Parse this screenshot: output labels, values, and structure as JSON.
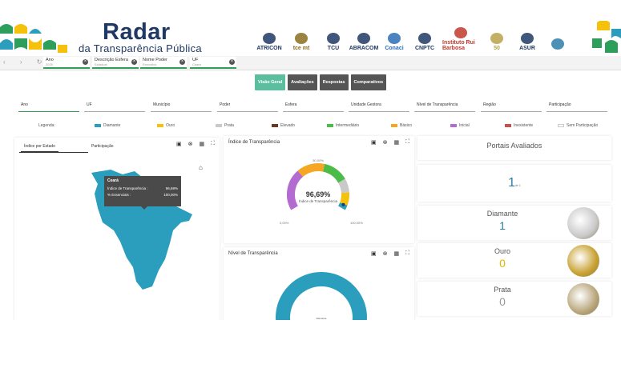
{
  "header": {
    "brand_title": "Radar",
    "brand_subtitle": "da Transparência Pública",
    "logos": [
      {
        "name": "ATRICON",
        "color": "#1f3864"
      },
      {
        "name": "tce mt",
        "color": "#8a6d1f"
      },
      {
        "name": "TCU",
        "color": "#1f3864"
      },
      {
        "name": "ABRACOM",
        "color": "#1f3864"
      },
      {
        "name": "Conaci",
        "color": "#2a6db5"
      },
      {
        "name": "CNPTC",
        "color": "#1f3864"
      },
      {
        "name": "Instituto Rui Barbosa",
        "color": "#c0392b"
      },
      {
        "name": "50",
        "color": "#b8a24a"
      },
      {
        "name": "ASUR",
        "color": "#1f3864"
      },
      {
        "name": "",
        "color": "#2e7fa8"
      }
    ]
  },
  "topbar": {
    "chips": [
      {
        "label": "Ano",
        "value": "2025"
      },
      {
        "label": "Descrição Esfera",
        "value": "Estadual"
      },
      {
        "label": "Nome Poder",
        "value": "Executivo"
      },
      {
        "label": "UF",
        "value": "Ceará"
      }
    ]
  },
  "tabs": [
    "Visão Geral",
    "Avaliações",
    "Respostas",
    "Comparativos"
  ],
  "filters": [
    "Ano",
    "UF",
    "Município",
    "Poder",
    "Esfera",
    "Unidade Gestora",
    "Nível de Transparência",
    "Região",
    "Participação"
  ],
  "legend": {
    "title": "Legenda:",
    "items": [
      {
        "label": "Diamante",
        "color": "#2a9ebc"
      },
      {
        "label": "Ouro",
        "color": "#f4c20d"
      },
      {
        "label": "Prata",
        "color": "#c9c9c9"
      },
      {
        "label": "Elevado",
        "color": "#6b3a1e"
      },
      {
        "label": "Intermediário",
        "color": "#4cbb47"
      },
      {
        "label": "Básico",
        "color": "#f5a623"
      },
      {
        "label": "Inicial",
        "color": "#b36bd1"
      },
      {
        "label": "Inexistente",
        "color": "#c94f4f"
      },
      {
        "label": "Sem Participação",
        "color": "#ffffff"
      }
    ]
  },
  "map_panel": {
    "tabs": [
      "Índice por Estado",
      "Participação"
    ],
    "map_color": "#2a9ebc",
    "tooltip": {
      "title": "Ceará",
      "rows": [
        {
          "label": "Índice de Transparência :",
          "value": "96,69%"
        },
        {
          "label": "% Essenciais :",
          "value": "100,00%"
        }
      ]
    }
  },
  "gauge_panel": {
    "title": "Índice de Transparência",
    "value_text": "96,69%",
    "value_label": "Índice de Transparência",
    "value_fraction": 0.9669,
    "min_label": "0,00%",
    "mid_label": "50,00%",
    "max_label": "100,00%",
    "segments": [
      {
        "color": "#b36bd1",
        "from": 0,
        "to": 0.33
      },
      {
        "color": "#f5a623",
        "from": 0.33,
        "to": 0.55
      },
      {
        "color": "#4cbb47",
        "from": 0.55,
        "to": 0.75
      },
      {
        "color": "#c9c9c9",
        "from": 0.75,
        "to": 0.86
      },
      {
        "color": "#f4c20d",
        "from": 0.86,
        "to": 0.96
      },
      {
        "color": "#2a9ebc",
        "from": 0.96,
        "to": 1.0
      }
    ]
  },
  "level_panel": {
    "title": "Nível de Transparência",
    "donut_color": "#2a9ebc",
    "center_label": "Diamante"
  },
  "portals": {
    "title": "Portais Avaliados",
    "total": "1",
    "total_suffix": "de 1",
    "cards": [
      {
        "title": "Diamante",
        "value": "1",
        "color": "#2a7fa8",
        "medal": "#c9c9c9"
      },
      {
        "title": "Ouro",
        "value": "0",
        "color": "#e8b400",
        "medal": "#c8a030"
      },
      {
        "title": "Prata",
        "value": "0",
        "color": "#999999",
        "medal": "#b8a57a"
      }
    ]
  }
}
